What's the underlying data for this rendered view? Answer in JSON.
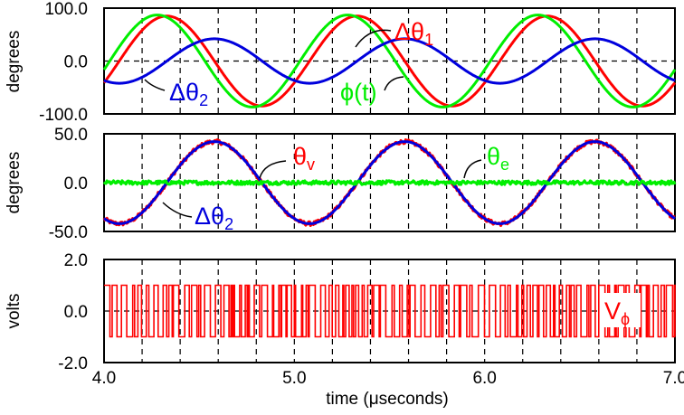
{
  "chart_data": [
    {
      "type": "line",
      "panel": "top",
      "ylabel": "degrees",
      "xlim": [
        4.0,
        7.0
      ],
      "ylim": [
        -100.0,
        100.0
      ],
      "yticks": [
        -100.0,
        0.0,
        100.0
      ],
      "ytick_labels": [
        "-100.0",
        "0.0",
        "100.0"
      ],
      "xticks": [
        4.2,
        4.4,
        4.6,
        4.8,
        5.0,
        5.2,
        5.4,
        5.6,
        5.8,
        6.0,
        6.2,
        6.4,
        6.6,
        6.8
      ],
      "grid": "dashed",
      "series": [
        {
          "name": "Δθ1",
          "color": "#ff0000",
          "amplitude": 85,
          "period_us": 1.0,
          "peak_at_us": 4.33
        },
        {
          "name": "ϕ(t)",
          "color": "#00ee00",
          "amplitude": 87,
          "period_us": 1.0,
          "peak_at_us": 4.28
        },
        {
          "name": "Δθ2",
          "color": "#0000dd",
          "amplitude": 42,
          "period_us": 1.0,
          "peak_at_us": 4.58
        }
      ],
      "annotations": [
        {
          "label": "Δθ",
          "sub": "1",
          "color": "#ff0000",
          "points_to": "Δθ1"
        },
        {
          "label": "ϕ(t)",
          "sub": "",
          "color": "#00ee00",
          "points_to": "ϕ(t)"
        },
        {
          "label": "Δθ",
          "sub": "2",
          "color": "#0000dd",
          "points_to": "Δθ2"
        }
      ]
    },
    {
      "type": "line",
      "panel": "middle",
      "ylabel": "degrees",
      "xlim": [
        4.0,
        7.0
      ],
      "ylim": [
        -50.0,
        50.0
      ],
      "yticks": [
        -50.0,
        0.0,
        50.0
      ],
      "ytick_labels": [
        "-50.0",
        "0.0",
        "50.0"
      ],
      "xticks": [
        4.2,
        4.4,
        4.6,
        4.8,
        5.0,
        5.2,
        5.4,
        5.6,
        5.8,
        6.0,
        6.2,
        6.4,
        6.6,
        6.8
      ],
      "grid": "dashed",
      "series": [
        {
          "name": "θv",
          "color": "#ff0000",
          "amplitude": 42,
          "period_us": 1.0,
          "peak_at_us": 4.58,
          "noise": 2.0
        },
        {
          "name": "Δθ2",
          "color": "#0000dd",
          "amplitude": 42,
          "period_us": 1.0,
          "peak_at_us": 4.58
        },
        {
          "name": "θe",
          "color": "#00ee00",
          "amplitude": 0,
          "period_us": 1.0,
          "peak_at_us": 4.0,
          "noise": 2.0
        }
      ],
      "annotations": [
        {
          "label": "θ",
          "sub": "v",
          "color": "#ff0000",
          "points_to": "θv"
        },
        {
          "label": "θ",
          "sub": "e",
          "color": "#00ee00",
          "points_to": "θe"
        },
        {
          "label": "Δθ",
          "sub": "2",
          "color": "#0000dd",
          "points_to": "Δθ2"
        }
      ]
    },
    {
      "type": "line",
      "panel": "bottom",
      "ylabel": "volts",
      "xlabel": "time (μseconds)",
      "xlim": [
        4.0,
        7.0
      ],
      "ylim": [
        -2.0,
        2.0
      ],
      "yticks": [
        -2.0,
        0.0,
        2.0
      ],
      "ytick_labels": [
        "-2.0",
        "0.0",
        "2.0"
      ],
      "xticks": [
        4.2,
        4.4,
        4.6,
        4.8,
        5.0,
        5.2,
        5.4,
        5.6,
        5.8,
        6.0,
        6.2,
        6.4,
        6.6,
        6.8
      ],
      "xtick_labels_shown": [
        {
          "value": 4.0,
          "label": "4.0"
        },
        {
          "value": 5.0,
          "label": "5.0"
        },
        {
          "value": 6.0,
          "label": "6.0"
        },
        {
          "value": 7.0,
          "label": "7.0"
        }
      ],
      "grid": "dashed",
      "series": [
        {
          "name": "Vϕ",
          "color": "#ff0000",
          "kind": "binary square wave",
          "high": 1.0,
          "low": -1.0
        }
      ],
      "annotations": [
        {
          "label": "V",
          "sub": "ϕ",
          "color": "#ff0000",
          "points_to": "Vϕ"
        }
      ]
    }
  ]
}
